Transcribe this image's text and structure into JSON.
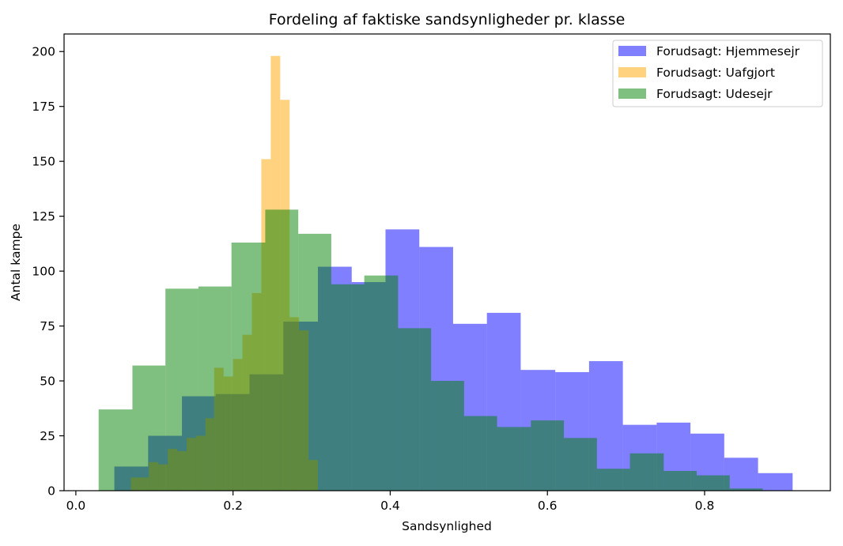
{
  "chart_data": {
    "type": "histogram",
    "title": "Fordeling af faktiske sandsynligheder pr. klasse",
    "xlabel": "Sandsynlighed",
    "ylabel": "Antal kampe",
    "xlim": [
      -0.015,
      0.96
    ],
    "ylim": [
      0,
      208
    ],
    "xticks": [
      0.0,
      0.2,
      0.4,
      0.6,
      0.8
    ],
    "xtick_labels": [
      "0.0",
      "0.2",
      "0.4",
      "0.6",
      "0.8"
    ],
    "yticks": [
      0,
      25,
      50,
      75,
      100,
      125,
      150,
      175,
      200
    ],
    "ytick_labels": [
      "0",
      "25",
      "50",
      "75",
      "100",
      "125",
      "150",
      "175",
      "200"
    ],
    "legend_position": "top-right",
    "grid": false,
    "series": [
      {
        "name": "Forudsagt: Hjemmesejr",
        "color": "#0000ff",
        "alpha": 0.5,
        "bins": [
          {
            "x0": 0.049,
            "x1": 0.092,
            "count": 11
          },
          {
            "x0": 0.092,
            "x1": 0.135,
            "count": 25
          },
          {
            "x0": 0.135,
            "x1": 0.178,
            "count": 43
          },
          {
            "x0": 0.178,
            "x1": 0.221,
            "count": 44
          },
          {
            "x0": 0.221,
            "x1": 0.264,
            "count": 53
          },
          {
            "x0": 0.264,
            "x1": 0.308,
            "count": 77
          },
          {
            "x0": 0.308,
            "x1": 0.351,
            "count": 102
          },
          {
            "x0": 0.351,
            "x1": 0.394,
            "count": 95
          },
          {
            "x0": 0.394,
            "x1": 0.437,
            "count": 119
          },
          {
            "x0": 0.437,
            "x1": 0.48,
            "count": 111
          },
          {
            "x0": 0.48,
            "x1": 0.523,
            "count": 76
          },
          {
            "x0": 0.523,
            "x1": 0.566,
            "count": 81
          },
          {
            "x0": 0.566,
            "x1": 0.61,
            "count": 55
          },
          {
            "x0": 0.61,
            "x1": 0.653,
            "count": 54
          },
          {
            "x0": 0.653,
            "x1": 0.696,
            "count": 59
          },
          {
            "x0": 0.696,
            "x1": 0.739,
            "count": 30
          },
          {
            "x0": 0.739,
            "x1": 0.782,
            "count": 31
          },
          {
            "x0": 0.782,
            "x1": 0.825,
            "count": 26
          },
          {
            "x0": 0.825,
            "x1": 0.868,
            "count": 15
          },
          {
            "x0": 0.868,
            "x1": 0.912,
            "count": 8
          }
        ]
      },
      {
        "name": "Forudsagt: Uafgjort",
        "color": "#ffa500",
        "alpha": 0.5,
        "bins": [
          {
            "x0": 0.07,
            "x1": 0.081,
            "count": 6
          },
          {
            "x0": 0.081,
            "x1": 0.093,
            "count": 6
          },
          {
            "x0": 0.093,
            "x1": 0.105,
            "count": 13
          },
          {
            "x0": 0.105,
            "x1": 0.117,
            "count": 12
          },
          {
            "x0": 0.117,
            "x1": 0.129,
            "count": 19
          },
          {
            "x0": 0.129,
            "x1": 0.141,
            "count": 18
          },
          {
            "x0": 0.141,
            "x1": 0.153,
            "count": 24
          },
          {
            "x0": 0.153,
            "x1": 0.165,
            "count": 25
          },
          {
            "x0": 0.165,
            "x1": 0.176,
            "count": 33
          },
          {
            "x0": 0.176,
            "x1": 0.188,
            "count": 56
          },
          {
            "x0": 0.188,
            "x1": 0.2,
            "count": 52
          },
          {
            "x0": 0.2,
            "x1": 0.212,
            "count": 60
          },
          {
            "x0": 0.212,
            "x1": 0.224,
            "count": 71
          },
          {
            "x0": 0.224,
            "x1": 0.236,
            "count": 90
          },
          {
            "x0": 0.236,
            "x1": 0.248,
            "count": 151
          },
          {
            "x0": 0.248,
            "x1": 0.26,
            "count": 198
          },
          {
            "x0": 0.26,
            "x1": 0.272,
            "count": 178
          },
          {
            "x0": 0.272,
            "x1": 0.284,
            "count": 79
          },
          {
            "x0": 0.284,
            "x1": 0.296,
            "count": 73
          },
          {
            "x0": 0.296,
            "x1": 0.308,
            "count": 14
          }
        ]
      },
      {
        "name": "Forudsagt: Udesejr",
        "color": "#008000",
        "alpha": 0.5,
        "bins": [
          {
            "x0": 0.029,
            "x1": 0.072,
            "count": 37
          },
          {
            "x0": 0.072,
            "x1": 0.114,
            "count": 57
          },
          {
            "x0": 0.114,
            "x1": 0.156,
            "count": 92
          },
          {
            "x0": 0.156,
            "x1": 0.198,
            "count": 93
          },
          {
            "x0": 0.198,
            "x1": 0.241,
            "count": 113
          },
          {
            "x0": 0.241,
            "x1": 0.283,
            "count": 128
          },
          {
            "x0": 0.283,
            "x1": 0.325,
            "count": 117
          },
          {
            "x0": 0.325,
            "x1": 0.367,
            "count": 94
          },
          {
            "x0": 0.367,
            "x1": 0.41,
            "count": 98
          },
          {
            "x0": 0.41,
            "x1": 0.452,
            "count": 74
          },
          {
            "x0": 0.452,
            "x1": 0.494,
            "count": 50
          },
          {
            "x0": 0.494,
            "x1": 0.536,
            "count": 34
          },
          {
            "x0": 0.536,
            "x1": 0.579,
            "count": 29
          },
          {
            "x0": 0.579,
            "x1": 0.621,
            "count": 32
          },
          {
            "x0": 0.621,
            "x1": 0.663,
            "count": 24
          },
          {
            "x0": 0.663,
            "x1": 0.705,
            "count": 10
          },
          {
            "x0": 0.705,
            "x1": 0.748,
            "count": 17
          },
          {
            "x0": 0.748,
            "x1": 0.79,
            "count": 9
          },
          {
            "x0": 0.79,
            "x1": 0.832,
            "count": 7
          },
          {
            "x0": 0.832,
            "x1": 0.874,
            "count": 1
          }
        ]
      }
    ]
  }
}
